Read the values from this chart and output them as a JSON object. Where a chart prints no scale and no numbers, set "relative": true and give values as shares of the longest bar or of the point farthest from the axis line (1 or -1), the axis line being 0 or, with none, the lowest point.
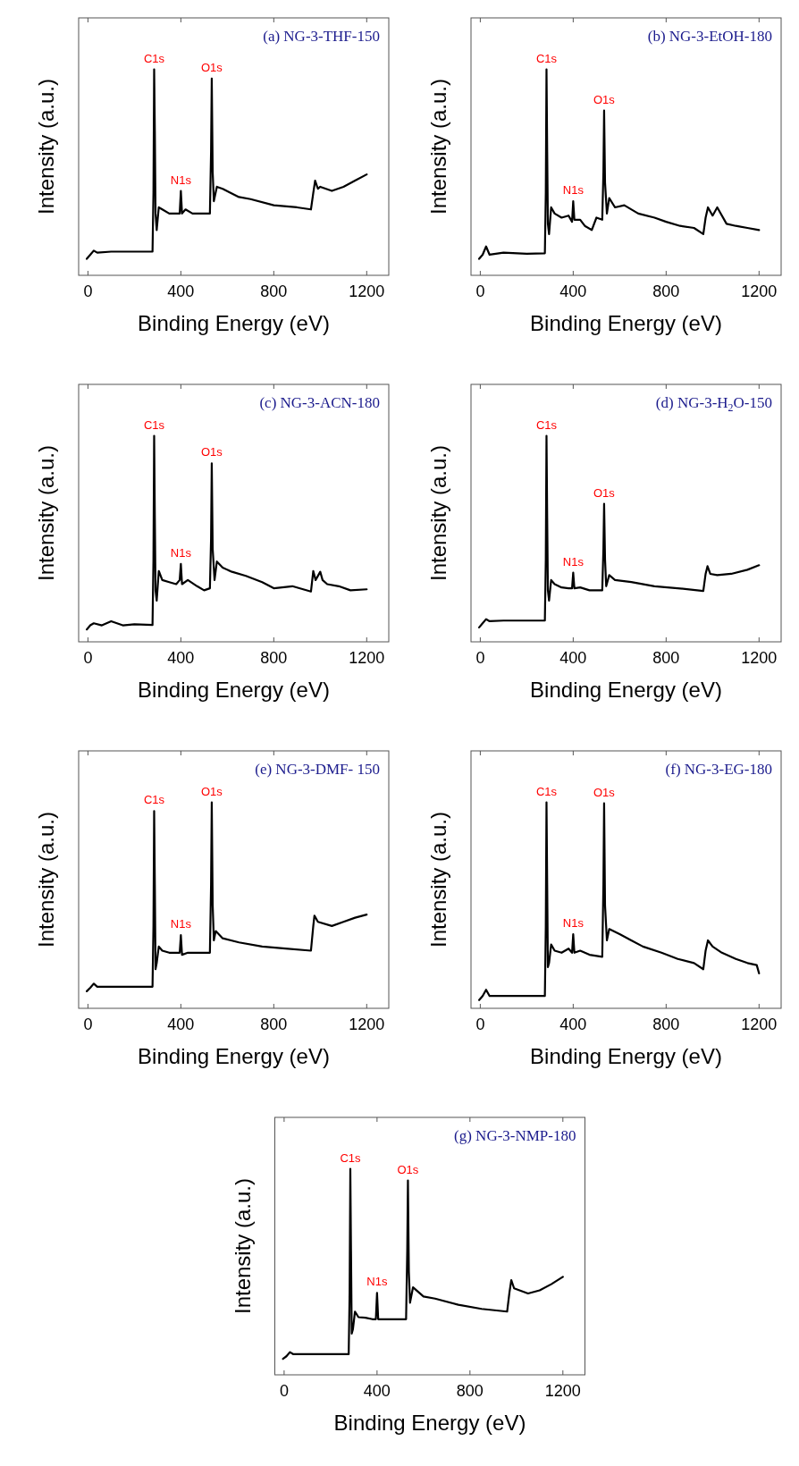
{
  "chart_data": [
    {
      "type": "line",
      "title": "(a) NG-3-THF-150",
      "xlabel": "Binding Energy (eV)",
      "ylabel": "Intensity (a.u.)",
      "relative": true,
      "xlim": [
        -40,
        1295
      ],
      "xticks": [
        0,
        400,
        800,
        1200
      ],
      "x": [
        -5,
        10,
        25,
        40,
        100,
        200,
        278,
        282,
        285,
        288,
        291,
        296,
        305,
        320,
        350,
        380,
        395,
        400,
        405,
        420,
        450,
        500,
        525,
        530,
        533,
        537,
        542,
        555,
        580,
        650,
        700,
        800,
        900,
        960,
        970,
        978,
        990,
        1000,
        1050,
        1100,
        1150,
        1200
      ],
      "series": [
        {
          "color": "#000000",
          "values": [
            0.08,
            0.1,
            0.12,
            0.11,
            0.115,
            0.115,
            0.115,
            0.4,
            1.0,
            0.7,
            0.3,
            0.22,
            0.33,
            0.32,
            0.3,
            0.3,
            0.3,
            0.41,
            0.3,
            0.32,
            0.3,
            0.3,
            0.3,
            0.6,
            0.956,
            0.5,
            0.36,
            0.43,
            0.42,
            0.38,
            0.37,
            0.34,
            0.33,
            0.32,
            0.4,
            0.46,
            0.42,
            0.43,
            0.41,
            0.43,
            0.46,
            0.49
          ]
        }
      ],
      "annotations": [
        {
          "text": "C1s",
          "x": 285,
          "y": 1.0
        },
        {
          "text": "N1s",
          "x": 400,
          "y": 0.41
        },
        {
          "text": "O1s",
          "x": 533,
          "y": 0.956
        }
      ]
    },
    {
      "type": "line",
      "title": "(b) NG-3-EtOH-180",
      "xlabel": "Binding Energy (eV)",
      "ylabel": "Intensity (a.u.)",
      "relative": true,
      "xlim": [
        -40,
        1295
      ],
      "xticks": [
        0,
        400,
        800,
        1200
      ],
      "x": [
        -5,
        10,
        25,
        40,
        100,
        200,
        278,
        282,
        285,
        288,
        291,
        296,
        305,
        320,
        350,
        380,
        395,
        400,
        405,
        430,
        450,
        480,
        500,
        525,
        530,
        533,
        537,
        545,
        555,
        580,
        620,
        680,
        750,
        800,
        860,
        920,
        960,
        970,
        980,
        1000,
        1020,
        1060,
        1100,
        1150,
        1200
      ],
      "series": [
        {
          "color": "#000000",
          "values": [
            0.08,
            0.1,
            0.14,
            0.1,
            0.11,
            0.105,
            0.107,
            0.4,
            1.0,
            0.6,
            0.25,
            0.2,
            0.33,
            0.3,
            0.28,
            0.29,
            0.26,
            0.36,
            0.27,
            0.27,
            0.24,
            0.22,
            0.28,
            0.27,
            0.5,
            0.8,
            0.45,
            0.3,
            0.375,
            0.33,
            0.34,
            0.3,
            0.28,
            0.26,
            0.24,
            0.23,
            0.2,
            0.28,
            0.33,
            0.29,
            0.33,
            0.25,
            0.24,
            0.23,
            0.22
          ]
        }
      ],
      "annotations": [
        {
          "text": "C1s",
          "x": 285,
          "y": 1.0
        },
        {
          "text": "N1s",
          "x": 400,
          "y": 0.36
        },
        {
          "text": "O1s",
          "x": 533,
          "y": 0.8
        }
      ]
    },
    {
      "type": "line",
      "title": "(c) NG-3-ACN-180",
      "xlabel": "Binding Energy (eV)",
      "ylabel": "Intensity (a.u.)",
      "relative": true,
      "xlim": [
        -40,
        1295
      ],
      "xticks": [
        0,
        400,
        800,
        1200
      ],
      "x": [
        -5,
        10,
        25,
        60,
        100,
        150,
        200,
        278,
        282,
        285,
        288,
        291,
        296,
        305,
        320,
        350,
        380,
        395,
        400,
        405,
        430,
        470,
        500,
        525,
        530,
        533,
        537,
        545,
        555,
        580,
        620,
        680,
        750,
        800,
        880,
        960,
        970,
        980,
        1000,
        1010,
        1030,
        1080,
        1130,
        1200
      ],
      "series": [
        {
          "color": "#000000",
          "values": [
            0.06,
            0.08,
            0.09,
            0.08,
            0.1,
            0.08,
            0.085,
            0.082,
            0.4,
            1.0,
            0.6,
            0.25,
            0.2,
            0.344,
            0.3,
            0.29,
            0.28,
            0.3,
            0.378,
            0.28,
            0.3,
            0.27,
            0.25,
            0.26,
            0.5,
            0.867,
            0.45,
            0.3,
            0.39,
            0.36,
            0.34,
            0.32,
            0.29,
            0.26,
            0.27,
            0.244,
            0.344,
            0.3,
            0.34,
            0.3,
            0.28,
            0.27,
            0.25,
            0.255
          ]
        }
      ],
      "annotations": [
        {
          "text": "C1s",
          "x": 285,
          "y": 1.0
        },
        {
          "text": "N1s",
          "x": 400,
          "y": 0.378
        },
        {
          "text": "O1s",
          "x": 533,
          "y": 0.867
        }
      ]
    },
    {
      "type": "line",
      "title": "(d) NG-3-H$_{2}$O-150",
      "xlabel": "Binding Energy (eV)",
      "ylabel": "Intensity (a.u.)",
      "relative": true,
      "xlim": [
        -40,
        1295
      ],
      "xticks": [
        0,
        400,
        800,
        1200
      ],
      "x": [
        -5,
        10,
        25,
        40,
        100,
        200,
        278,
        282,
        285,
        288,
        291,
        296,
        305,
        320,
        350,
        380,
        395,
        400,
        405,
        430,
        470,
        525,
        530,
        533,
        537,
        542,
        555,
        580,
        650,
        750,
        850,
        960,
        970,
        978,
        990,
        1020,
        1080,
        1150,
        1200
      ],
      "series": [
        {
          "color": "#000000",
          "values": [
            0.07,
            0.09,
            0.11,
            0.1,
            0.103,
            0.103,
            0.103,
            0.4,
            1.0,
            0.6,
            0.25,
            0.2,
            0.3,
            0.28,
            0.264,
            0.26,
            0.26,
            0.336,
            0.26,
            0.264,
            0.25,
            0.25,
            0.45,
            0.67,
            0.4,
            0.27,
            0.324,
            0.3,
            0.29,
            0.27,
            0.26,
            0.247,
            0.33,
            0.367,
            0.33,
            0.324,
            0.33,
            0.35,
            0.372
          ]
        }
      ],
      "annotations": [
        {
          "text": "C1s",
          "x": 285,
          "y": 1.0
        },
        {
          "text": "N1s",
          "x": 400,
          "y": 0.336
        },
        {
          "text": "O1s",
          "x": 533,
          "y": 0.67
        }
      ]
    },
    {
      "type": "line",
      "title": "(e) NG-3-DMF- 150",
      "xlabel": "Binding Energy (eV)",
      "ylabel": "Intensity (a.u.)",
      "relative": true,
      "xlim": [
        -40,
        1295
      ],
      "xticks": [
        0,
        400,
        800,
        1200
      ],
      "x": [
        -5,
        10,
        25,
        40,
        100,
        200,
        278,
        282,
        285,
        288,
        291,
        296,
        305,
        320,
        350,
        380,
        395,
        400,
        405,
        430,
        470,
        525,
        530,
        533,
        537,
        542,
        550,
        580,
        650,
        750,
        850,
        960,
        970,
        975,
        990,
        1050,
        1100,
        1150,
        1200
      ],
      "series": [
        {
          "color": "#000000",
          "values": [
            0.083,
            0.1,
            0.12,
            0.105,
            0.105,
            0.105,
            0.105,
            0.4,
            0.958,
            0.6,
            0.19,
            0.22,
            0.3,
            0.28,
            0.27,
            0.27,
            0.27,
            0.355,
            0.26,
            0.27,
            0.27,
            0.27,
            0.6,
            1.0,
            0.5,
            0.33,
            0.375,
            0.34,
            0.32,
            0.3,
            0.29,
            0.28,
            0.4,
            0.45,
            0.42,
            0.4,
            0.42,
            0.44,
            0.455
          ]
        }
      ],
      "annotations": [
        {
          "text": "C1s",
          "x": 285,
          "y": 0.958
        },
        {
          "text": "N1s",
          "x": 400,
          "y": 0.355
        },
        {
          "text": "O1s",
          "x": 533,
          "y": 1.0
        }
      ]
    },
    {
      "type": "line",
      "title": "(f) NG-3-EG-180",
      "xlabel": "Binding Energy (eV)",
      "ylabel": "Intensity (a.u.)",
      "relative": true,
      "xlim": [
        -40,
        1295
      ],
      "xticks": [
        0,
        400,
        800,
        1200
      ],
      "x": [
        -5,
        10,
        25,
        40,
        100,
        200,
        278,
        282,
        285,
        288,
        291,
        296,
        305,
        320,
        350,
        380,
        395,
        400,
        405,
        430,
        470,
        525,
        530,
        533,
        537,
        545,
        555,
        600,
        650,
        700,
        780,
        850,
        920,
        960,
        970,
        980,
        1000,
        1040,
        1100,
        1150,
        1190,
        1200
      ],
      "series": [
        {
          "color": "#000000",
          "values": [
            0.04,
            0.06,
            0.09,
            0.06,
            0.06,
            0.06,
            0.06,
            0.4,
            1.0,
            0.6,
            0.2,
            0.22,
            0.31,
            0.28,
            0.27,
            0.29,
            0.27,
            0.36,
            0.27,
            0.28,
            0.26,
            0.25,
            0.6,
            0.996,
            0.5,
            0.33,
            0.385,
            0.36,
            0.33,
            0.3,
            0.27,
            0.24,
            0.22,
            0.19,
            0.28,
            0.33,
            0.3,
            0.27,
            0.24,
            0.22,
            0.21,
            0.17
          ]
        }
      ],
      "annotations": [
        {
          "text": "C1s",
          "x": 285,
          "y": 1.0
        },
        {
          "text": "N1s",
          "x": 400,
          "y": 0.36
        },
        {
          "text": "O1s",
          "x": 533,
          "y": 0.996
        }
      ]
    },
    {
      "type": "line",
      "title": "(g) NG-3-NMP-180",
      "xlabel": "Binding Energy (eV)",
      "ylabel": "Intensity (a.u.)",
      "relative": true,
      "xlim": [
        -40,
        1295
      ],
      "xticks": [
        0,
        400,
        800,
        1200
      ],
      "x": [
        -5,
        10,
        25,
        40,
        100,
        200,
        278,
        282,
        285,
        288,
        291,
        296,
        305,
        320,
        350,
        380,
        395,
        400,
        405,
        430,
        470,
        525,
        530,
        533,
        537,
        542,
        555,
        600,
        650,
        750,
        850,
        960,
        970,
        978,
        990,
        1050,
        1100,
        1150,
        1200
      ],
      "series": [
        {
          "color": "#000000",
          "values": [
            0.078,
            0.09,
            0.11,
            0.1,
            0.1,
            0.1,
            0.1,
            0.4,
            1.0,
            0.6,
            0.2,
            0.22,
            0.307,
            0.28,
            0.277,
            0.27,
            0.27,
            0.398,
            0.27,
            0.27,
            0.27,
            0.27,
            0.6,
            0.944,
            0.5,
            0.35,
            0.425,
            0.38,
            0.37,
            0.34,
            0.32,
            0.307,
            0.4,
            0.46,
            0.42,
            0.395,
            0.41,
            0.44,
            0.476
          ]
        }
      ],
      "annotations": [
        {
          "text": "C1s",
          "x": 285,
          "y": 1.0
        },
        {
          "text": "N1s",
          "x": 400,
          "y": 0.398
        },
        {
          "text": "O1s",
          "x": 533,
          "y": 0.944
        }
      ]
    }
  ]
}
